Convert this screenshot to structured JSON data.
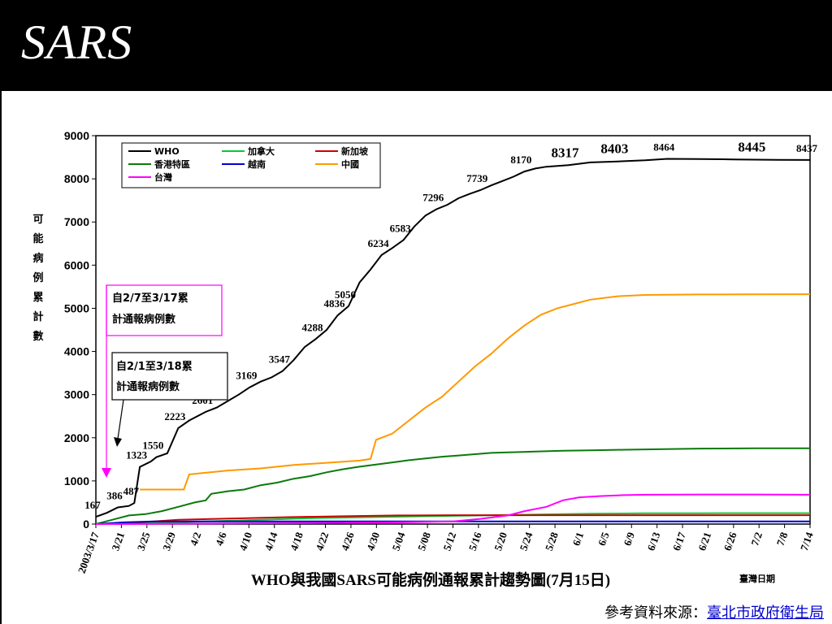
{
  "slide": {
    "title": "SARS",
    "source_label": "參考資料來源：",
    "source_link": "臺北市政府衛生局"
  },
  "chart_data": {
    "type": "line",
    "title": "WHO與我國SARS可能病例通報累計趨勢圖(7月15日)",
    "xlabel": "臺灣日期",
    "ylabel": "可能病例累計數",
    "ylim": [
      0,
      9000
    ],
    "yticks": [
      0,
      1000,
      2000,
      3000,
      4000,
      5000,
      6000,
      7000,
      8000,
      9000
    ],
    "xticks": [
      "2003/3/17",
      "3/21",
      "3/25",
      "3/29",
      "4/2",
      "4/6",
      "4/10",
      "4/14",
      "4/18",
      "4/22",
      "4/26",
      "4/30",
      "5/04",
      "5/08",
      "5/12",
      "5/16",
      "5/20",
      "5/24",
      "5/28",
      "6/1",
      "6/5",
      "6/9",
      "6/13",
      "6/17",
      "6/21",
      "6/26",
      "7/2",
      "7/8",
      "7/14"
    ],
    "legend_placement": "top-left",
    "series": [
      {
        "name": "WHO",
        "color": "#000000",
        "points": [
          [
            0,
            167
          ],
          [
            2,
            260
          ],
          [
            4,
            386
          ],
          [
            6,
            420
          ],
          [
            7,
            487
          ],
          [
            8,
            1323
          ],
          [
            10,
            1450
          ],
          [
            11,
            1550
          ],
          [
            13,
            1640
          ],
          [
            15,
            2223
          ],
          [
            17,
            2400
          ],
          [
            20,
            2601
          ],
          [
            22,
            2700
          ],
          [
            24,
            2850
          ],
          [
            26,
            3000
          ],
          [
            28,
            3169
          ],
          [
            30,
            3300
          ],
          [
            32,
            3400
          ],
          [
            34,
            3547
          ],
          [
            36,
            3800
          ],
          [
            38,
            4100
          ],
          [
            40,
            4288
          ],
          [
            42,
            4500
          ],
          [
            44,
            4836
          ],
          [
            46,
            5050
          ],
          [
            48,
            5600
          ],
          [
            50,
            5900
          ],
          [
            52,
            6234
          ],
          [
            54,
            6400
          ],
          [
            56,
            6583
          ],
          [
            58,
            6900
          ],
          [
            60,
            7150
          ],
          [
            62,
            7296
          ],
          [
            64,
            7400
          ],
          [
            66,
            7550
          ],
          [
            68,
            7650
          ],
          [
            70,
            7739
          ],
          [
            72,
            7850
          ],
          [
            74,
            7950
          ],
          [
            76,
            8050
          ],
          [
            78,
            8170
          ],
          [
            80,
            8240
          ],
          [
            82,
            8280
          ],
          [
            84,
            8300
          ],
          [
            86,
            8317
          ],
          [
            90,
            8380
          ],
          [
            95,
            8403
          ],
          [
            100,
            8430
          ],
          [
            104,
            8464
          ],
          [
            110,
            8460
          ],
          [
            116,
            8450
          ],
          [
            120,
            8445
          ],
          [
            124,
            8440
          ],
          [
            130,
            8437
          ]
        ]
      },
      {
        "name": "加拿大",
        "color": "#00cc33",
        "points": [
          [
            0,
            0
          ],
          [
            10,
            20
          ],
          [
            20,
            60
          ],
          [
            30,
            100
          ],
          [
            40,
            140
          ],
          [
            50,
            160
          ],
          [
            60,
            180
          ],
          [
            70,
            200
          ],
          [
            80,
            220
          ],
          [
            90,
            240
          ],
          [
            100,
            250
          ],
          [
            110,
            250
          ],
          [
            120,
            252
          ],
          [
            130,
            252
          ]
        ]
      },
      {
        "name": "新加坡",
        "color": "#cc0000",
        "points": [
          [
            0,
            0
          ],
          [
            8,
            40
          ],
          [
            15,
            100
          ],
          [
            25,
            130
          ],
          [
            35,
            160
          ],
          [
            45,
            180
          ],
          [
            55,
            200
          ],
          [
            65,
            205
          ],
          [
            75,
            206
          ],
          [
            90,
            206
          ],
          [
            110,
            206
          ],
          [
            130,
            206
          ]
        ]
      },
      {
        "name": "香港特區",
        "color": "#0a7a0a",
        "points": [
          [
            0,
            0
          ],
          [
            3,
            100
          ],
          [
            6,
            200
          ],
          [
            9,
            230
          ],
          [
            12,
            300
          ],
          [
            15,
            400
          ],
          [
            18,
            500
          ],
          [
            20,
            550
          ],
          [
            21,
            700
          ],
          [
            24,
            760
          ],
          [
            27,
            800
          ],
          [
            30,
            900
          ],
          [
            33,
            960
          ],
          [
            36,
            1050
          ],
          [
            39,
            1110
          ],
          [
            42,
            1200
          ],
          [
            45,
            1270
          ],
          [
            48,
            1330
          ],
          [
            51,
            1380
          ],
          [
            54,
            1430
          ],
          [
            57,
            1480
          ],
          [
            60,
            1520
          ],
          [
            63,
            1560
          ],
          [
            66,
            1590
          ],
          [
            69,
            1620
          ],
          [
            72,
            1650
          ],
          [
            75,
            1660
          ],
          [
            80,
            1680
          ],
          [
            85,
            1700
          ],
          [
            90,
            1710
          ],
          [
            95,
            1720
          ],
          [
            100,
            1730
          ],
          [
            110,
            1750
          ],
          [
            120,
            1755
          ],
          [
            130,
            1755
          ]
        ]
      },
      {
        "name": "越南",
        "color": "#0000cc",
        "points": [
          [
            0,
            0
          ],
          [
            5,
            40
          ],
          [
            10,
            58
          ],
          [
            20,
            63
          ],
          [
            30,
            63
          ],
          [
            60,
            63
          ],
          [
            90,
            63
          ],
          [
            130,
            63
          ]
        ]
      },
      {
        "name": "中國",
        "color": "#ff9900",
        "points": [
          [
            8,
            800
          ],
          [
            16,
            800
          ],
          [
            17,
            1150
          ],
          [
            20,
            1190
          ],
          [
            24,
            1240
          ],
          [
            30,
            1290
          ],
          [
            36,
            1370
          ],
          [
            42,
            1420
          ],
          [
            48,
            1470
          ],
          [
            50,
            1510
          ],
          [
            51,
            1950
          ],
          [
            54,
            2100
          ],
          [
            57,
            2400
          ],
          [
            60,
            2700
          ],
          [
            63,
            2950
          ],
          [
            66,
            3300
          ],
          [
            69,
            3650
          ],
          [
            72,
            3950
          ],
          [
            75,
            4300
          ],
          [
            78,
            4600
          ],
          [
            81,
            4850
          ],
          [
            84,
            5000
          ],
          [
            87,
            5100
          ],
          [
            90,
            5200
          ],
          [
            95,
            5280
          ],
          [
            100,
            5310
          ],
          [
            110,
            5320
          ],
          [
            120,
            5325
          ],
          [
            130,
            5327
          ]
        ]
      },
      {
        "name": "台灣",
        "color": "#ff00ff",
        "points": [
          [
            0,
            0
          ],
          [
            35,
            20
          ],
          [
            55,
            40
          ],
          [
            65,
            60
          ],
          [
            70,
            120
          ],
          [
            75,
            200
          ],
          [
            78,
            300
          ],
          [
            82,
            400
          ],
          [
            85,
            550
          ],
          [
            88,
            620
          ],
          [
            92,
            650
          ],
          [
            96,
            670
          ],
          [
            100,
            680
          ],
          [
            110,
            685
          ],
          [
            120,
            685
          ],
          [
            130,
            680
          ]
        ]
      }
    ],
    "annotations": [
      {
        "text": "自2/7至3/17累計通報病例數",
        "color": "#ff00ff"
      },
      {
        "text": "自2/1至3/18累計通報病例數",
        "color": "#000000"
      }
    ],
    "data_labels": [
      {
        "x": 0,
        "y": 167,
        "text": "167"
      },
      {
        "x": 4,
        "y": 386,
        "text": "386"
      },
      {
        "x": 7,
        "y": 487,
        "text": "487"
      },
      {
        "x": 8,
        "y": 1323,
        "text": "1323"
      },
      {
        "x": 11,
        "y": 1550,
        "text": "1550"
      },
      {
        "x": 15,
        "y": 2223,
        "text": "2223"
      },
      {
        "x": 20,
        "y": 2601,
        "text": "2601"
      },
      {
        "x": 28,
        "y": 3169,
        "text": "3169"
      },
      {
        "x": 34,
        "y": 3547,
        "text": "3547"
      },
      {
        "x": 40,
        "y": 4288,
        "text": "4288"
      },
      {
        "x": 44,
        "y": 4836,
        "text": "4836"
      },
      {
        "x": 46,
        "y": 5050,
        "text": "5050"
      },
      {
        "x": 52,
        "y": 6234,
        "text": "6234"
      },
      {
        "x": 56,
        "y": 6583,
        "text": "6583"
      },
      {
        "x": 62,
        "y": 7296,
        "text": "7296"
      },
      {
        "x": 70,
        "y": 7739,
        "text": "7739"
      },
      {
        "x": 78,
        "y": 8170,
        "text": "8170"
      },
      {
        "x": 86,
        "y": 8317,
        "text": "8317"
      },
      {
        "x": 95,
        "y": 8403,
        "text": "8403"
      },
      {
        "x": 104,
        "y": 8464,
        "text": "8464"
      },
      {
        "x": 120,
        "y": 8445,
        "text": "8445"
      },
      {
        "x": 130,
        "y": 8437,
        "text": "8437"
      }
    ]
  }
}
